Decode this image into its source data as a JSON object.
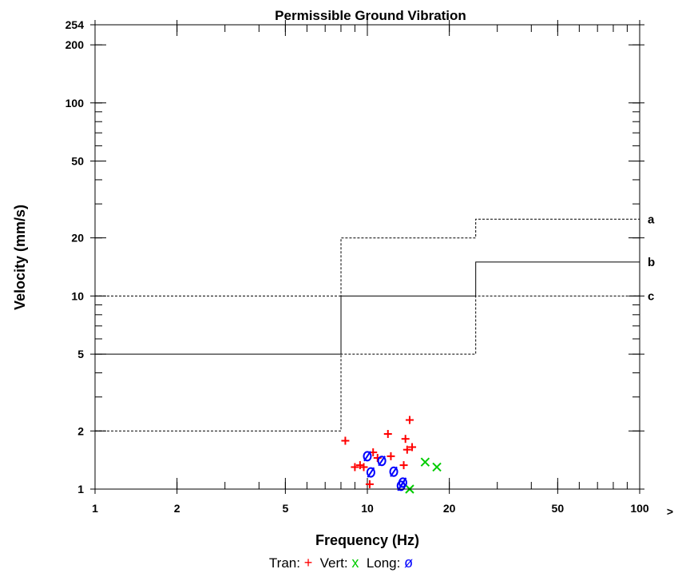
{
  "chart_data": {
    "type": "scatter",
    "title": "Permissible Ground Vibration",
    "xlabel": "Frequency (Hz)",
    "ylabel": "Velocity (mm/s)",
    "x_scale": "log",
    "y_scale": "log",
    "xlim": [
      1,
      100
    ],
    "ylim": [
      1,
      254
    ],
    "x_ticks": [
      1,
      2,
      5,
      10,
      20,
      50,
      100
    ],
    "x_tick_labels": [
      "1",
      "2",
      "5",
      "10",
      "20",
      "50",
      "100"
    ],
    "x_overflow_marker": ">",
    "y_ticks": [
      1,
      2,
      5,
      10,
      20,
      50,
      100,
      200,
      254
    ],
    "y_tick_labels": [
      "1",
      "2",
      "5",
      "10",
      "20",
      "50",
      "100",
      "200",
      "254"
    ],
    "limit_curves": [
      {
        "label": "a",
        "style": "dashed",
        "points": [
          [
            1,
            2
          ],
          [
            8,
            2
          ],
          [
            8,
            20
          ],
          [
            25,
            20
          ],
          [
            25,
            25
          ],
          [
            100,
            25
          ]
        ]
      },
      {
        "label": "b",
        "style": "solid",
        "points": [
          [
            1,
            5
          ],
          [
            8,
            5
          ],
          [
            8,
            10
          ],
          [
            25,
            10
          ],
          [
            25,
            15
          ],
          [
            100,
            15
          ]
        ]
      },
      {
        "label": "c",
        "style": "dashed",
        "points": [
          [
            1,
            10
          ],
          [
            8,
            10
          ],
          [
            8,
            5
          ],
          [
            25,
            5
          ],
          [
            25,
            10
          ],
          [
            100,
            10
          ]
        ]
      }
    ],
    "series": [
      {
        "name": "Tran",
        "symbol": "+",
        "color": "#ff0000",
        "points": [
          [
            8.3,
            1.78
          ],
          [
            9.0,
            1.3
          ],
          [
            9.4,
            1.33
          ],
          [
            9.7,
            1.3
          ],
          [
            10.2,
            1.06
          ],
          [
            10.5,
            1.55
          ],
          [
            10.9,
            1.45
          ],
          [
            11.9,
            1.93
          ],
          [
            12.2,
            1.48
          ],
          [
            13.6,
            1.33
          ],
          [
            13.8,
            1.82
          ],
          [
            14.0,
            1.6
          ],
          [
            14.3,
            2.28
          ],
          [
            14.6,
            1.65
          ]
        ]
      },
      {
        "name": "Vert",
        "symbol": "x",
        "color": "#00cc00",
        "points": [
          [
            14.3,
            1.0
          ],
          [
            16.3,
            1.38
          ],
          [
            18.0,
            1.3
          ]
        ]
      },
      {
        "name": "Long",
        "symbol": "ø",
        "color": "#0000ff",
        "points": [
          [
            10.0,
            1.48
          ],
          [
            10.3,
            1.22
          ],
          [
            11.3,
            1.4
          ],
          [
            12.5,
            1.23
          ],
          [
            13.3,
            1.04
          ],
          [
            13.5,
            1.08
          ]
        ]
      }
    ]
  },
  "legend": {
    "tran_label": "Tran:",
    "tran_symbol": "+",
    "vert_label": "Vert:",
    "vert_symbol": "x",
    "long_label": "Long:",
    "long_symbol": "ø"
  }
}
